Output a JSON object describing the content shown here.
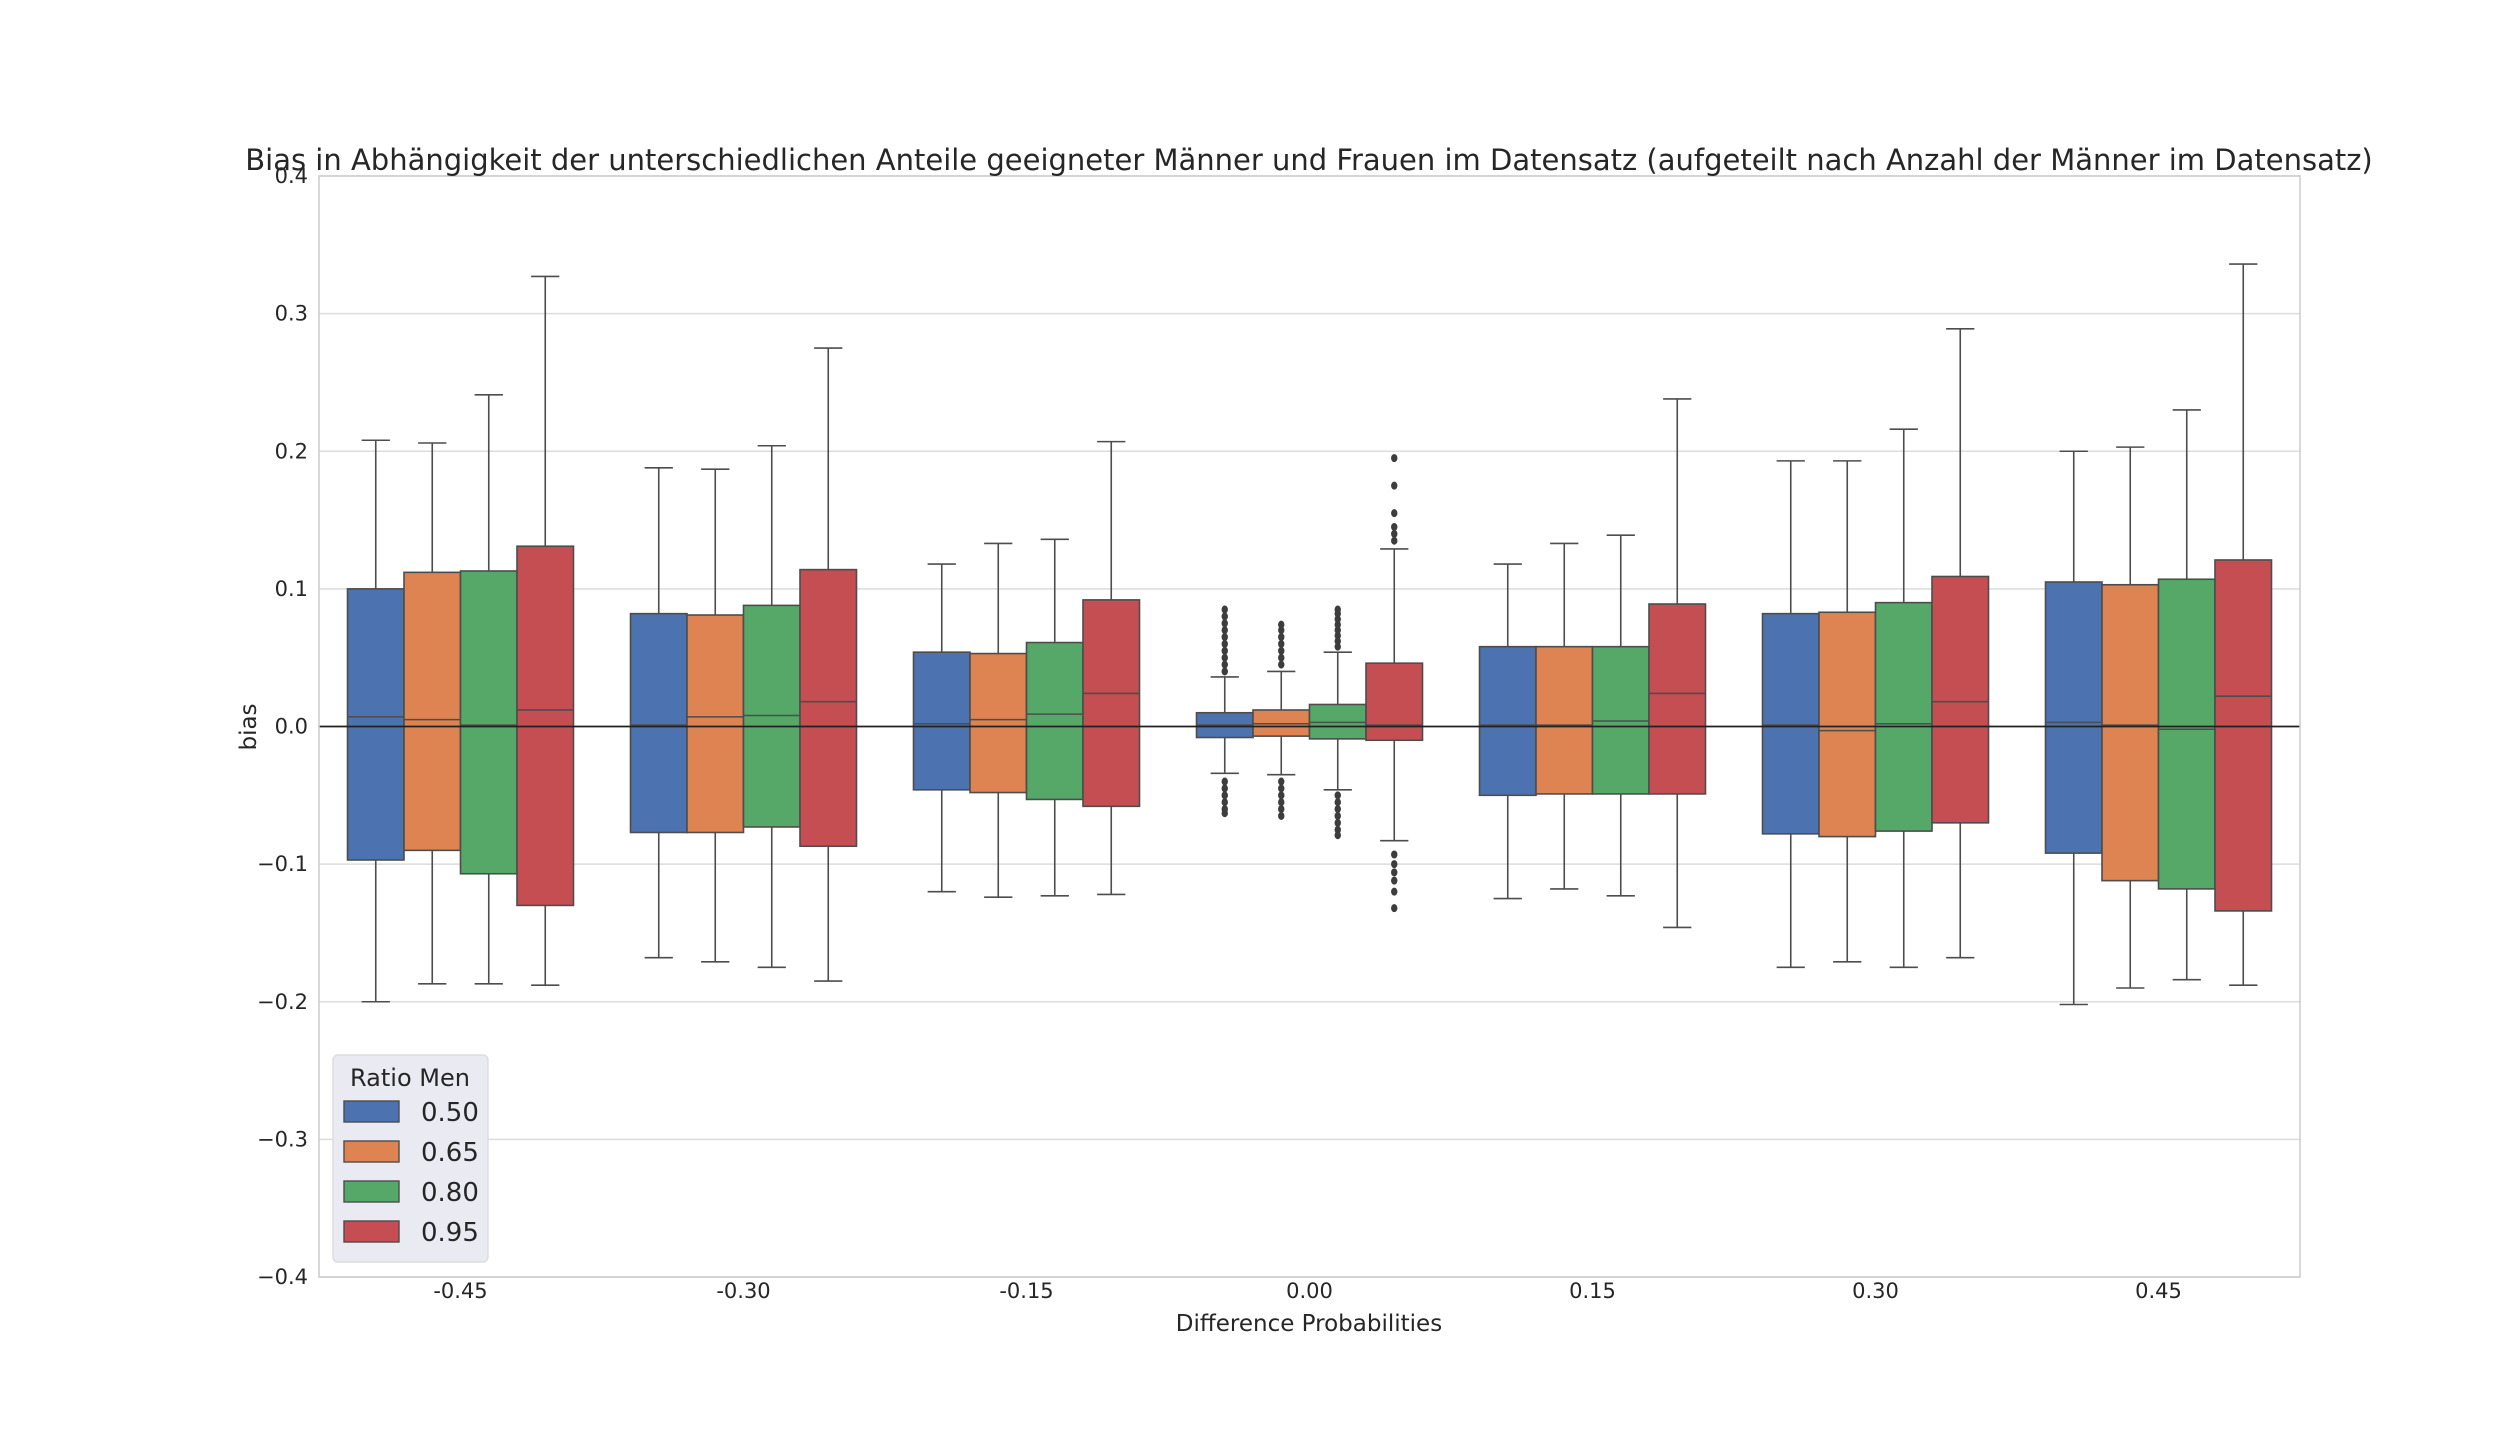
{
  "chart_data": {
    "type": "box",
    "title": "Bias in Abhängigkeit der unterschiedlichen Anteile geeigneter Männer und Frauen im Datensatz (aufgeteilt nach Anzahl der Männer im Datensatz)",
    "xlabel": "Difference Probabilities",
    "ylabel": "bias",
    "ylim": [
      -0.4,
      0.4
    ],
    "yticks": [
      "−0.4",
      "−0.3",
      "−0.2",
      "−0.1",
      "0.0",
      "0.1",
      "0.2",
      "0.3",
      "0.4"
    ],
    "categories": [
      "-0.45",
      "-0.30",
      "-0.15",
      "0.00",
      "0.15",
      "0.30",
      "0.45"
    ],
    "grid": true,
    "reference_line_y": 0.0,
    "legend": {
      "title": "Ratio Men",
      "placement": "lower-left",
      "entries": [
        "0.50",
        "0.65",
        "0.80",
        "0.95"
      ]
    },
    "colors": [
      "#4c72b0",
      "#dd8452",
      "#55a868",
      "#c44e52"
    ],
    "series": [
      {
        "name": "0.50",
        "boxes": [
          {
            "whislo": -0.2,
            "q1": -0.097,
            "med": 0.007,
            "q3": 0.1,
            "whishi": 0.208
          },
          {
            "whislo": -0.168,
            "q1": -0.077,
            "med": 0.001,
            "q3": 0.082,
            "whishi": 0.188
          },
          {
            "whislo": -0.12,
            "q1": -0.046,
            "med": 0.002,
            "q3": 0.054,
            "whishi": 0.118
          },
          {
            "whislo": -0.034,
            "q1": -0.008,
            "med": 0.001,
            "q3": 0.01,
            "whishi": 0.036
          },
          {
            "whislo": -0.125,
            "q1": -0.05,
            "med": 0.001,
            "q3": 0.058,
            "whishi": 0.118
          },
          {
            "whislo": -0.175,
            "q1": -0.078,
            "med": 0.001,
            "q3": 0.082,
            "whishi": 0.193
          },
          {
            "whislo": -0.202,
            "q1": -0.092,
            "med": 0.003,
            "q3": 0.105,
            "whishi": 0.2
          }
        ],
        "outliers": [
          [],
          [],
          [],
          [
            0.04,
            0.045,
            0.05,
            0.055,
            0.06,
            0.065,
            0.07,
            0.075,
            0.08,
            0.085,
            -0.04,
            -0.045,
            -0.05,
            -0.055,
            -0.06,
            -0.063
          ],
          [],
          [],
          []
        ]
      },
      {
        "name": "0.65",
        "boxes": [
          {
            "whislo": -0.187,
            "q1": -0.09,
            "med": 0.005,
            "q3": 0.112,
            "whishi": 0.206
          },
          {
            "whislo": -0.171,
            "q1": -0.077,
            "med": 0.007,
            "q3": 0.081,
            "whishi": 0.187
          },
          {
            "whislo": -0.124,
            "q1": -0.048,
            "med": 0.005,
            "q3": 0.053,
            "whishi": 0.133
          },
          {
            "whislo": -0.035,
            "q1": -0.007,
            "med": 0.002,
            "q3": 0.012,
            "whishi": 0.04
          },
          {
            "whislo": -0.118,
            "q1": -0.049,
            "med": 0.001,
            "q3": 0.058,
            "whishi": 0.133
          },
          {
            "whislo": -0.171,
            "q1": -0.08,
            "med": -0.003,
            "q3": 0.083,
            "whishi": 0.193
          },
          {
            "whislo": -0.19,
            "q1": -0.112,
            "med": 0.001,
            "q3": 0.103,
            "whishi": 0.203
          }
        ],
        "outliers": [
          [],
          [],
          [],
          [
            0.045,
            0.05,
            0.055,
            0.06,
            0.065,
            0.07,
            0.074,
            -0.04,
            -0.045,
            -0.05,
            -0.055,
            -0.06,
            -0.065
          ],
          [],
          [],
          []
        ]
      },
      {
        "name": "0.80",
        "boxes": [
          {
            "whislo": -0.187,
            "q1": -0.107,
            "med": 0.001,
            "q3": 0.113,
            "whishi": 0.241
          },
          {
            "whislo": -0.175,
            "q1": -0.073,
            "med": 0.008,
            "q3": 0.088,
            "whishi": 0.204
          },
          {
            "whislo": -0.123,
            "q1": -0.053,
            "med": 0.009,
            "q3": 0.061,
            "whishi": 0.136
          },
          {
            "whislo": -0.046,
            "q1": -0.009,
            "med": 0.003,
            "q3": 0.016,
            "whishi": 0.054
          },
          {
            "whislo": -0.123,
            "q1": -0.049,
            "med": 0.004,
            "q3": 0.058,
            "whishi": 0.139
          },
          {
            "whislo": -0.175,
            "q1": -0.076,
            "med": 0.002,
            "q3": 0.09,
            "whishi": 0.216
          },
          {
            "whislo": -0.184,
            "q1": -0.118,
            "med": -0.002,
            "q3": 0.107,
            "whishi": 0.23
          }
        ],
        "outliers": [
          [],
          [],
          [],
          [
            0.058,
            0.062,
            0.066,
            0.07,
            0.074,
            0.078,
            0.082,
            0.085,
            -0.05,
            -0.055,
            -0.06,
            -0.065,
            -0.07,
            -0.075,
            -0.079
          ],
          [],
          [],
          []
        ]
      },
      {
        "name": "0.95",
        "boxes": [
          {
            "whislo": -0.188,
            "q1": -0.13,
            "med": 0.012,
            "q3": 0.131,
            "whishi": 0.327
          },
          {
            "whislo": -0.185,
            "q1": -0.087,
            "med": 0.018,
            "q3": 0.114,
            "whishi": 0.275
          },
          {
            "whislo": -0.122,
            "q1": -0.058,
            "med": 0.024,
            "q3": 0.092,
            "whishi": 0.207
          },
          {
            "whislo": -0.083,
            "q1": -0.01,
            "med": 0.001,
            "q3": 0.046,
            "whishi": 0.129
          },
          {
            "whislo": -0.146,
            "q1": -0.049,
            "med": 0.024,
            "q3": 0.089,
            "whishi": 0.238
          },
          {
            "whislo": -0.168,
            "q1": -0.07,
            "med": 0.018,
            "q3": 0.109,
            "whishi": 0.289
          },
          {
            "whislo": -0.188,
            "q1": -0.134,
            "med": 0.022,
            "q3": 0.121,
            "whishi": 0.336
          }
        ],
        "outliers": [
          [],
          [],
          [],
          [
            0.135,
            0.14,
            0.145,
            0.155,
            0.175,
            0.195,
            -0.093,
            -0.1,
            -0.106,
            -0.112,
            -0.12,
            -0.132
          ],
          [],
          [],
          []
        ]
      }
    ]
  }
}
